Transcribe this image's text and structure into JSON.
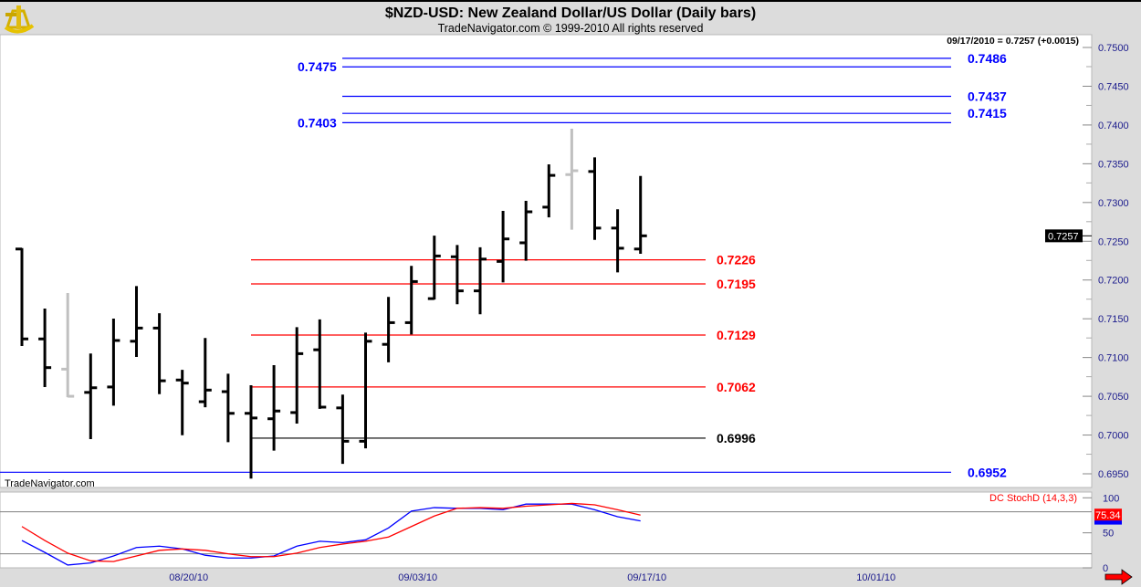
{
  "header": {
    "title": "$NZD-USD:  New Zealand Dollar/US Dollar  (Daily bars)",
    "subtitle": "TradeNavigator.com © 1999-2010 All rights reserved",
    "logo_icon": "sextant-icon",
    "quote_readout": "09/17/2010 = 0.7257 (+0.0015)",
    "watermark": "TradeNavigator.com"
  },
  "colors": {
    "bar": "#000000",
    "bar_inside": "#c0c0c0",
    "blue_level": "#0000ff",
    "red_level": "#ff0000",
    "black_level": "#000000",
    "stoch_fast": "#0000ff",
    "stoch_slow": "#ff0000",
    "axis_text": "#1a1a8c"
  },
  "chart_data": [
    {
      "type": "ohlc",
      "ylim": [
        0.695,
        0.75
      ],
      "yticks": [
        "0.7500",
        "0.7450",
        "0.7400",
        "0.7350",
        "0.7300",
        "0.7250",
        "0.7200",
        "0.7150",
        "0.7100",
        "0.7050",
        "0.7000",
        "0.6950"
      ],
      "xtick_labels": [
        {
          "label": "08/20/10",
          "bar": 7
        },
        {
          "label": "09/03/10",
          "bar": 17
        },
        {
          "label": "09/17/10",
          "bar": 27
        },
        {
          "label": "10/01/10",
          "bar": 37
        }
      ],
      "last_price_label": "0.7257",
      "bars": [
        {
          "o": 0.724,
          "h": 0.724,
          "l": 0.7116,
          "c": 0.7124,
          "inside": false
        },
        {
          "o": 0.7124,
          "h": 0.7162,
          "l": 0.7063,
          "c": 0.7087,
          "inside": false
        },
        {
          "o": 0.7085,
          "h": 0.7182,
          "l": 0.705,
          "c": 0.705,
          "inside": true
        },
        {
          "o": 0.7055,
          "h": 0.7104,
          "l": 0.6996,
          "c": 0.7061,
          "inside": false
        },
        {
          "o": 0.7062,
          "h": 0.7149,
          "l": 0.7039,
          "c": 0.7122,
          "inside": false
        },
        {
          "o": 0.7121,
          "h": 0.7191,
          "l": 0.7102,
          "c": 0.7138,
          "inside": false
        },
        {
          "o": 0.7138,
          "h": 0.7156,
          "l": 0.7054,
          "c": 0.707,
          "inside": false
        },
        {
          "o": 0.7071,
          "h": 0.7083,
          "l": 0.7001,
          "c": 0.7067,
          "inside": false
        },
        {
          "o": 0.7043,
          "h": 0.7124,
          "l": 0.7037,
          "c": 0.7058,
          "inside": false
        },
        {
          "o": 0.7056,
          "h": 0.7078,
          "l": 0.6992,
          "c": 0.7028,
          "inside": false
        },
        {
          "o": 0.7028,
          "h": 0.7063,
          "l": 0.6945,
          "c": 0.7022,
          "inside": false
        },
        {
          "o": 0.7021,
          "h": 0.7089,
          "l": 0.6981,
          "c": 0.7031,
          "inside": false
        },
        {
          "o": 0.7029,
          "h": 0.7138,
          "l": 0.7016,
          "c": 0.7105,
          "inside": false
        },
        {
          "o": 0.711,
          "h": 0.7148,
          "l": 0.7035,
          "c": 0.7036,
          "inside": false
        },
        {
          "o": 0.7035,
          "h": 0.7051,
          "l": 0.6964,
          "c": 0.6992,
          "inside": false
        },
        {
          "o": 0.6992,
          "h": 0.7131,
          "l": 0.6984,
          "c": 0.7121,
          "inside": false
        },
        {
          "o": 0.7117,
          "h": 0.7177,
          "l": 0.7095,
          "c": 0.7145,
          "inside": false
        },
        {
          "o": 0.7145,
          "h": 0.7217,
          "l": 0.7131,
          "c": 0.7198,
          "inside": false
        },
        {
          "o": 0.7176,
          "h": 0.7256,
          "l": 0.7176,
          "c": 0.7231,
          "inside": false
        },
        {
          "o": 0.723,
          "h": 0.7244,
          "l": 0.717,
          "c": 0.7186,
          "inside": false
        },
        {
          "o": 0.7186,
          "h": 0.7241,
          "l": 0.7157,
          "c": 0.7227,
          "inside": false
        },
        {
          "o": 0.7224,
          "h": 0.7288,
          "l": 0.7198,
          "c": 0.7253,
          "inside": false
        },
        {
          "o": 0.7248,
          "h": 0.7301,
          "l": 0.7226,
          "c": 0.7288,
          "inside": false
        },
        {
          "o": 0.7294,
          "h": 0.7348,
          "l": 0.7282,
          "c": 0.7335,
          "inside": false
        },
        {
          "o": 0.7336,
          "h": 0.7394,
          "l": 0.7266,
          "c": 0.7341,
          "inside": true
        },
        {
          "o": 0.734,
          "h": 0.7357,
          "l": 0.7253,
          "c": 0.7267,
          "inside": false
        },
        {
          "o": 0.7267,
          "h": 0.729,
          "l": 0.7211,
          "c": 0.7241,
          "inside": false
        },
        {
          "o": 0.724,
          "h": 0.7333,
          "l": 0.7235,
          "c": 0.7257,
          "inside": false
        }
      ],
      "levels": [
        {
          "value": 0.7486,
          "label": "0.7486",
          "color": "blue",
          "label_side": "right",
          "span": "upper"
        },
        {
          "value": 0.7475,
          "label": "0.7475",
          "color": "blue",
          "label_side": "left",
          "span": "upper"
        },
        {
          "value": 0.7437,
          "label": "0.7437",
          "color": "blue",
          "label_side": "right",
          "span": "upper"
        },
        {
          "value": 0.7415,
          "label": "0.7415",
          "color": "blue",
          "label_side": "right",
          "span": "upper"
        },
        {
          "value": 0.7403,
          "label": "0.7403",
          "color": "blue",
          "label_side": "left",
          "span": "upper"
        },
        {
          "value": 0.7226,
          "label": "0.7226",
          "color": "red",
          "label_side": "right",
          "span": "mid"
        },
        {
          "value": 0.7195,
          "label": "0.7195",
          "color": "red",
          "label_side": "right",
          "span": "mid"
        },
        {
          "value": 0.7129,
          "label": "0.7129",
          "color": "red",
          "label_side": "right",
          "span": "mid"
        },
        {
          "value": 0.7062,
          "label": "0.7062",
          "color": "red",
          "label_side": "right",
          "span": "mid"
        },
        {
          "value": 0.6996,
          "label": "0.6996",
          "color": "black",
          "label_side": "right",
          "span": "mid"
        },
        {
          "value": 0.6952,
          "label": "0.6952",
          "color": "blue",
          "label_side": "right",
          "span": "full"
        }
      ]
    },
    {
      "type": "line",
      "title": "DC StochD (14,3,3)",
      "ylim": [
        0,
        100
      ],
      "yticks": [
        "100",
        "50",
        "0"
      ],
      "reference_lines": [
        20,
        80
      ],
      "last_value_label": "75.34",
      "series": [
        {
          "color": "blue",
          "values": [
            39,
            22,
            4,
            7,
            17,
            29,
            31,
            27,
            18,
            14,
            14,
            17,
            31,
            38,
            36,
            40,
            57,
            81,
            86,
            85,
            85,
            83,
            91,
            91,
            91,
            83,
            73,
            67
          ]
        },
        {
          "color": "red",
          "values": [
            59,
            39,
            21,
            10,
            9,
            17,
            25,
            27,
            25,
            20,
            16,
            16,
            21,
            29,
            34,
            38,
            44,
            59,
            74,
            85,
            86,
            85,
            88,
            90,
            92,
            90,
            83,
            75.34
          ]
        }
      ]
    }
  ]
}
